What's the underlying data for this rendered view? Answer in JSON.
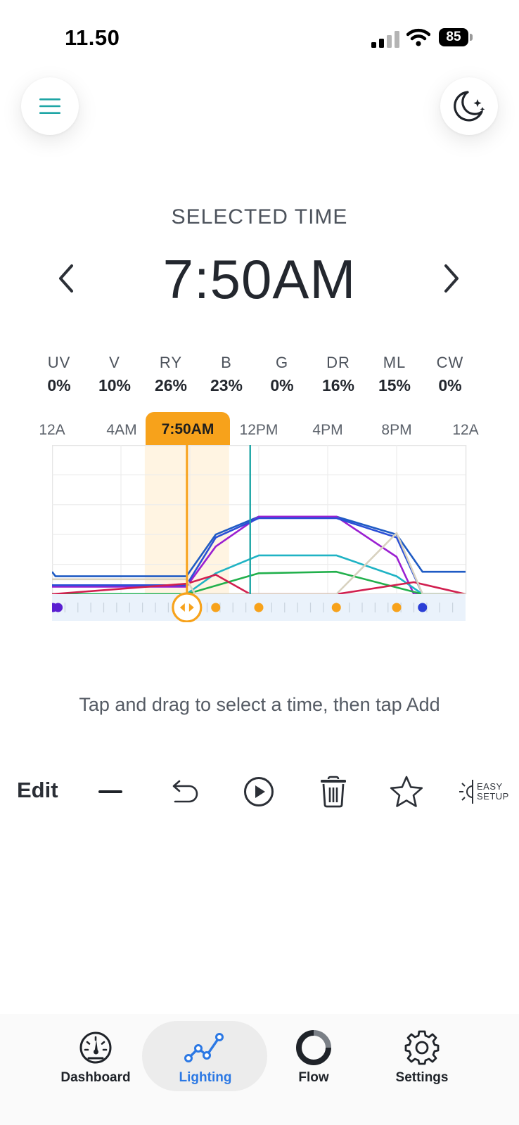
{
  "status_bar": {
    "time": "11.50",
    "battery": "85"
  },
  "header": {
    "menu_icon": "hamburger-icon",
    "night_icon": "moon-stars-icon"
  },
  "selected": {
    "label": "SELECTED TIME",
    "time": "7:50AM"
  },
  "channels": [
    {
      "name": "UV",
      "value": "0%"
    },
    {
      "name": "V",
      "value": "10%"
    },
    {
      "name": "RY",
      "value": "26%"
    },
    {
      "name": "B",
      "value": "23%"
    },
    {
      "name": "G",
      "value": "0%"
    },
    {
      "name": "DR",
      "value": "16%"
    },
    {
      "name": "ML",
      "value": "15%"
    },
    {
      "name": "CW",
      "value": "0%"
    }
  ],
  "timeline": {
    "labels": [
      "12A",
      "4AM",
      "12PM",
      "4PM",
      "8PM",
      "12A"
    ],
    "selected_tag": "7:50AM"
  },
  "chart_data": {
    "type": "line",
    "x_label_ticks": [
      "12A",
      "4AM",
      "7:50AM",
      "12PM",
      "4PM",
      "8PM",
      "12A"
    ],
    "xlim": [
      0,
      24
    ],
    "ylim": [
      0,
      100
    ],
    "selected_x": 7.83,
    "current_x": 11.5,
    "grid": true,
    "series": [
      {
        "color": "#1f5bc4",
        "points": [
          [
            0,
            15
          ],
          [
            0.2,
            12
          ],
          [
            7.8,
            12
          ],
          [
            9.5,
            40
          ],
          [
            12,
            52
          ],
          [
            16.5,
            52
          ],
          [
            20,
            40
          ],
          [
            21.5,
            15
          ],
          [
            24,
            15
          ]
        ]
      },
      {
        "color": "#9b1fd1",
        "points": [
          [
            0,
            5
          ],
          [
            7.8,
            5
          ],
          [
            9.5,
            32
          ],
          [
            12,
            52
          ],
          [
            16.5,
            52
          ],
          [
            20,
            25
          ],
          [
            21,
            0
          ],
          [
            24,
            0
          ]
        ]
      },
      {
        "color": "#2b4fd6",
        "points": [
          [
            0,
            6
          ],
          [
            7.8,
            6
          ],
          [
            9.5,
            38
          ],
          [
            12,
            51
          ],
          [
            16.5,
            51
          ],
          [
            20,
            38
          ],
          [
            21.5,
            0
          ],
          [
            24,
            0
          ]
        ]
      },
      {
        "color": "#1fb3c4",
        "points": [
          [
            0,
            0
          ],
          [
            7.8,
            0
          ],
          [
            9.5,
            14
          ],
          [
            12,
            26
          ],
          [
            16.5,
            26
          ],
          [
            20,
            12
          ],
          [
            21.5,
            0
          ],
          [
            24,
            0
          ]
        ]
      },
      {
        "color": "#22b04c",
        "points": [
          [
            0,
            0
          ],
          [
            7.8,
            0
          ],
          [
            12,
            14
          ],
          [
            16.5,
            15
          ],
          [
            21.5,
            0
          ],
          [
            24,
            0
          ]
        ]
      },
      {
        "color": "#d11f4f",
        "points": [
          [
            0,
            0
          ],
          [
            7.8,
            7
          ],
          [
            9.5,
            13
          ],
          [
            11.5,
            0
          ],
          [
            16.5,
            0
          ],
          [
            21,
            8
          ],
          [
            24,
            0
          ]
        ]
      },
      {
        "color": "#d8d2c0",
        "points": [
          [
            0,
            10
          ],
          [
            7.8,
            10
          ],
          [
            8.3,
            0
          ],
          [
            16.5,
            0
          ],
          [
            20,
            41
          ],
          [
            21.5,
            0
          ],
          [
            24,
            0
          ]
        ]
      }
    ],
    "schedule_points": [
      {
        "x": 0.05,
        "color": "#5a1fd1"
      },
      {
        "x": 0.35,
        "color": "#5a1fd1"
      },
      {
        "x": 9.5,
        "color": "#f7a21b"
      },
      {
        "x": 12,
        "color": "#f7a21b"
      },
      {
        "x": 16.5,
        "color": "#f7a21b"
      },
      {
        "x": 20,
        "color": "#f7a21b"
      },
      {
        "x": 21.5,
        "color": "#2b3fd6"
      }
    ]
  },
  "hint_text": "Tap and drag to select a time, then tap Add",
  "toolbar": {
    "edit_label": "Edit",
    "easy_setup_line1": "EASY",
    "easy_setup_line2": "SETUP"
  },
  "bottom_nav": [
    {
      "label": "Dashboard",
      "icon": "gauge-icon"
    },
    {
      "label": "Lighting",
      "icon": "chart-line-icon",
      "active": true
    },
    {
      "label": "Flow",
      "icon": "flow-ring-icon"
    },
    {
      "label": "Settings",
      "icon": "gear-icon"
    }
  ],
  "colors": {
    "accent": "#f7a21b",
    "active_nav": "#2b78e4",
    "teal": "#1ea5a5"
  }
}
